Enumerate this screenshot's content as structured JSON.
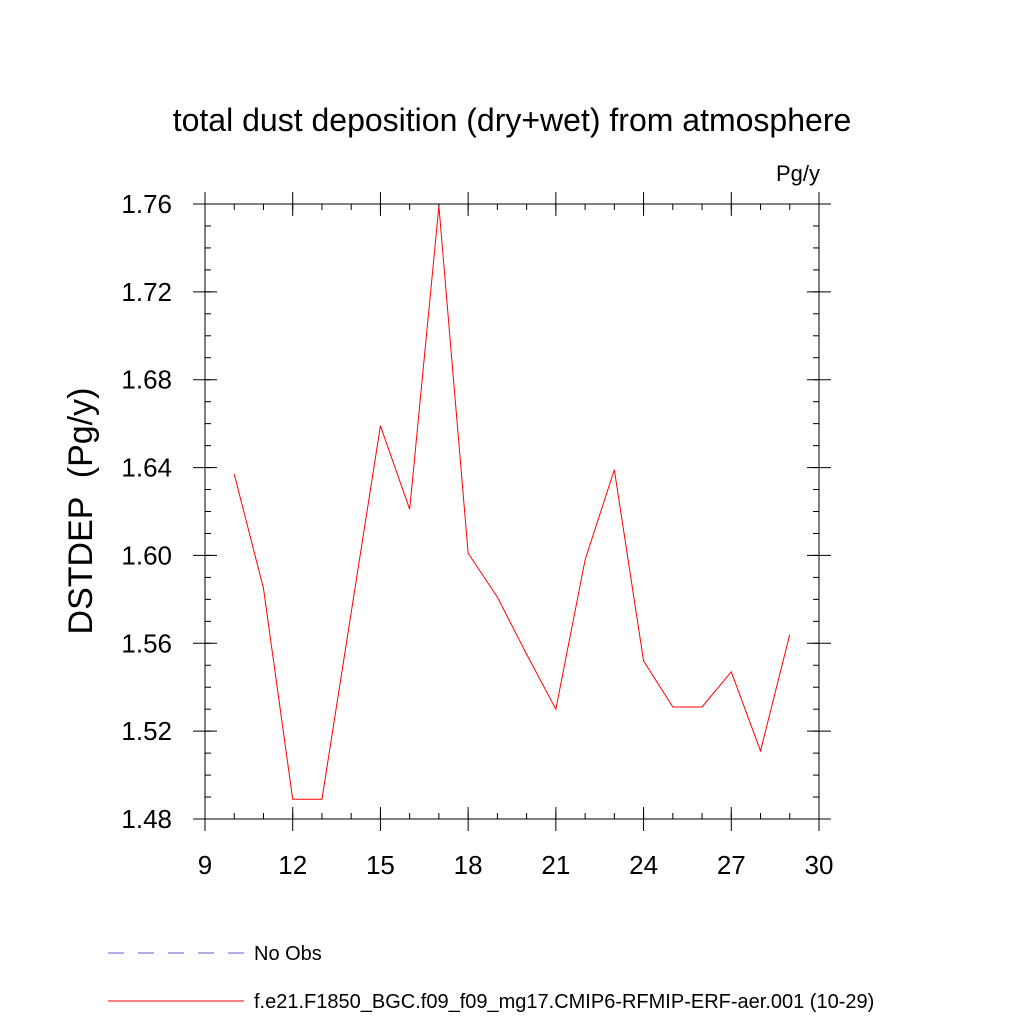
{
  "chart_data": {
    "type": "line",
    "title": "total dust deposition (dry+wet) from atmosphere",
    "units_label": "Pg/y",
    "ylabel": "DSTDEP  (Pg/y)",
    "xlabel": "",
    "xlim": [
      9,
      30
    ],
    "ylim": [
      1.48,
      1.76
    ],
    "x_ticks": [
      9,
      12,
      15,
      18,
      21,
      24,
      27,
      30
    ],
    "x_tick_labels": [
      "9",
      "12",
      "15",
      "18",
      "21",
      "24",
      "27",
      "30"
    ],
    "y_ticks": [
      1.48,
      1.52,
      1.56,
      1.6,
      1.64,
      1.68,
      1.72,
      1.76
    ],
    "y_tick_labels": [
      "1.48",
      "1.52",
      "1.56",
      "1.60",
      "1.64",
      "1.68",
      "1.72",
      "1.76"
    ],
    "grid": false,
    "legend_position": "bottom-left",
    "series": [
      {
        "name": "f.e21.F1850_BGC.f09_f09_mg17.CMIP6-RFMIP-ERF-aer.001 (10-29)",
        "color": "#ff0000",
        "style": "solid",
        "x": [
          10,
          11,
          12,
          13,
          14,
          15,
          16,
          17,
          18,
          19,
          20,
          21,
          22,
          23,
          24,
          25,
          26,
          27,
          28,
          29
        ],
        "values": [
          1.637,
          1.585,
          1.489,
          1.489,
          1.574,
          1.659,
          1.621,
          1.759,
          1.601,
          1.581,
          1.555,
          1.53,
          1.598,
          1.639,
          1.552,
          1.531,
          1.531,
          1.547,
          1.511,
          1.564
        ]
      }
    ],
    "legend": [
      {
        "label": "No Obs",
        "color": "#6a5acd",
        "style": "dashed"
      },
      {
        "label": "f.e21.F1850_BGC.f09_f09_mg17.CMIP6-RFMIP-ERF-aer.001 (10-29)",
        "color": "#ff0000",
        "style": "solid"
      }
    ]
  }
}
